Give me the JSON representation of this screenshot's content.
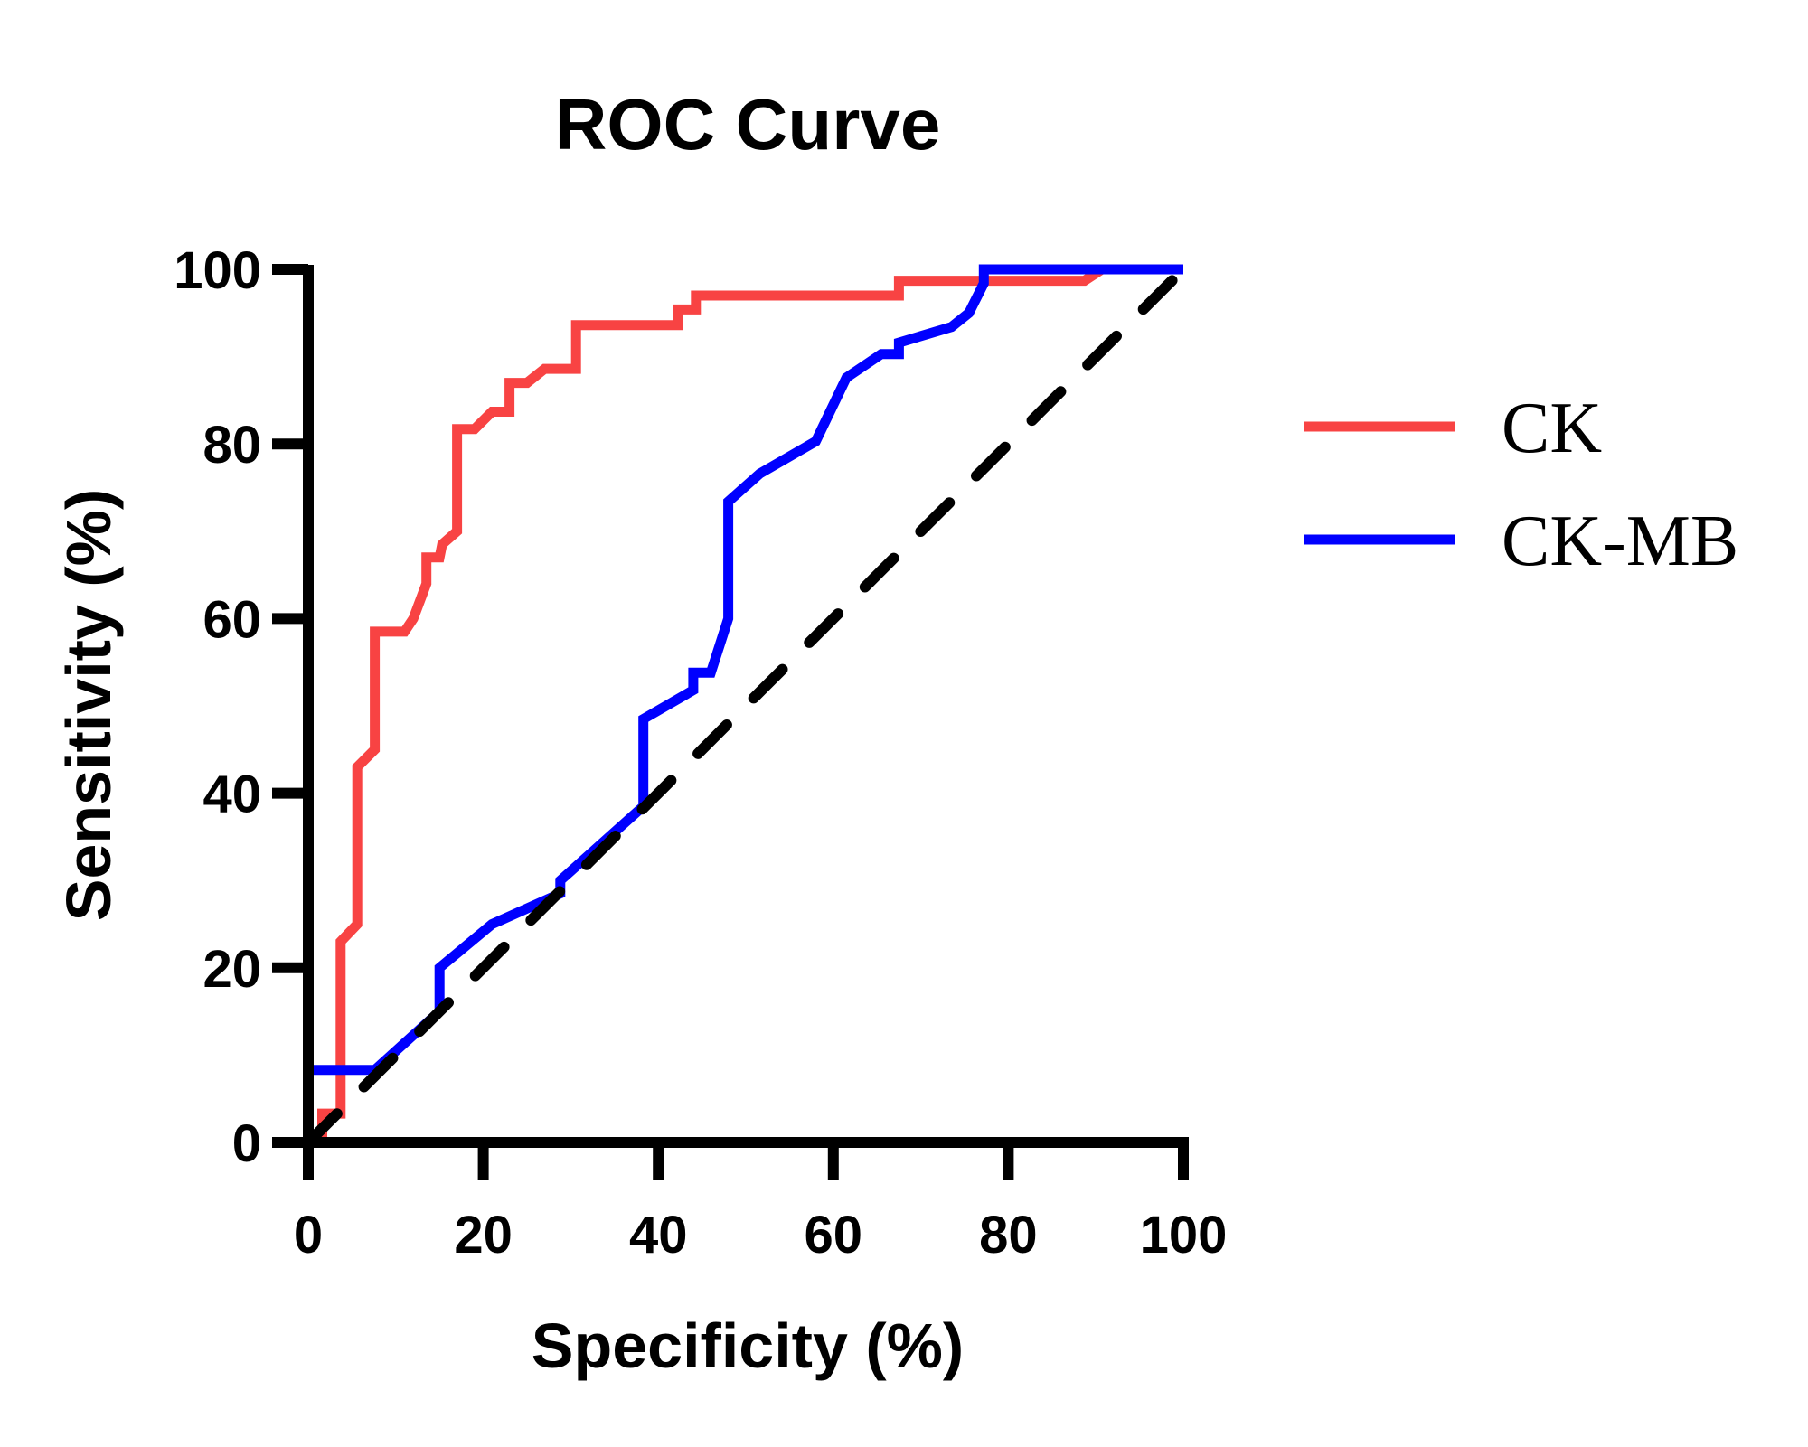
{
  "chart_data": {
    "type": "line",
    "title": "ROC Curve",
    "xlabel": "Specificity (%)",
    "ylabel": "Sensitivity (%)",
    "xlim": [
      0,
      100
    ],
    "ylim": [
      0,
      100
    ],
    "xticks": [
      "0",
      "20",
      "40",
      "60",
      "80",
      "100"
    ],
    "yticks": [
      "0",
      "20",
      "40",
      "60",
      "80",
      "100"
    ],
    "grid": false,
    "legend_position": "right",
    "series": [
      {
        "name": "CK",
        "color": "#f84343",
        "points": [
          [
            1.6,
            0
          ],
          [
            1.6,
            3.3
          ],
          [
            3.7,
            3.3
          ],
          [
            3.7,
            23
          ],
          [
            5.6,
            25
          ],
          [
            5.6,
            43
          ],
          [
            7.6,
            45
          ],
          [
            7.6,
            58.5
          ],
          [
            11,
            58.5
          ],
          [
            12,
            60
          ],
          [
            13.5,
            64
          ],
          [
            13.5,
            67
          ],
          [
            15,
            67
          ],
          [
            15.3,
            68.5
          ],
          [
            17,
            70
          ],
          [
            17,
            81.7
          ],
          [
            19,
            81.7
          ],
          [
            21,
            83.7
          ],
          [
            23,
            83.7
          ],
          [
            23,
            87
          ],
          [
            25,
            87
          ],
          [
            27,
            88.6
          ],
          [
            30.6,
            88.6
          ],
          [
            30.6,
            93.6
          ],
          [
            42.3,
            93.6
          ],
          [
            42.3,
            95.4
          ],
          [
            44.3,
            95.4
          ],
          [
            44.3,
            97
          ],
          [
            67.5,
            97
          ],
          [
            67.5,
            98.7
          ],
          [
            88.7,
            98.7
          ],
          [
            90.7,
            100
          ],
          [
            100,
            100
          ]
        ]
      },
      {
        "name": "CK-MB",
        "color": "#0000ff",
        "points": [
          [
            0,
            0
          ],
          [
            0,
            8.3
          ],
          [
            7.6,
            8.3
          ],
          [
            15,
            15
          ],
          [
            15,
            20
          ],
          [
            21,
            25
          ],
          [
            28.8,
            28.5
          ],
          [
            28.8,
            30
          ],
          [
            38.3,
            38.5
          ],
          [
            38.3,
            48.5
          ],
          [
            44,
            51.8
          ],
          [
            44,
            53.8
          ],
          [
            46,
            53.8
          ],
          [
            48,
            60
          ],
          [
            48,
            73.4
          ],
          [
            51.6,
            76.6
          ],
          [
            58,
            80.3
          ],
          [
            61.5,
            87.6
          ],
          [
            65.5,
            90.3
          ],
          [
            67.5,
            90.3
          ],
          [
            67.5,
            91.6
          ],
          [
            73.5,
            93.4
          ],
          [
            75.5,
            95
          ],
          [
            77.2,
            98.4
          ],
          [
            77.2,
            100
          ],
          [
            100,
            100
          ]
        ]
      },
      {
        "name": "",
        "style": "dashed",
        "color": "#000000",
        "points": [
          [
            0,
            0
          ],
          [
            100,
            100
          ]
        ]
      }
    ]
  }
}
